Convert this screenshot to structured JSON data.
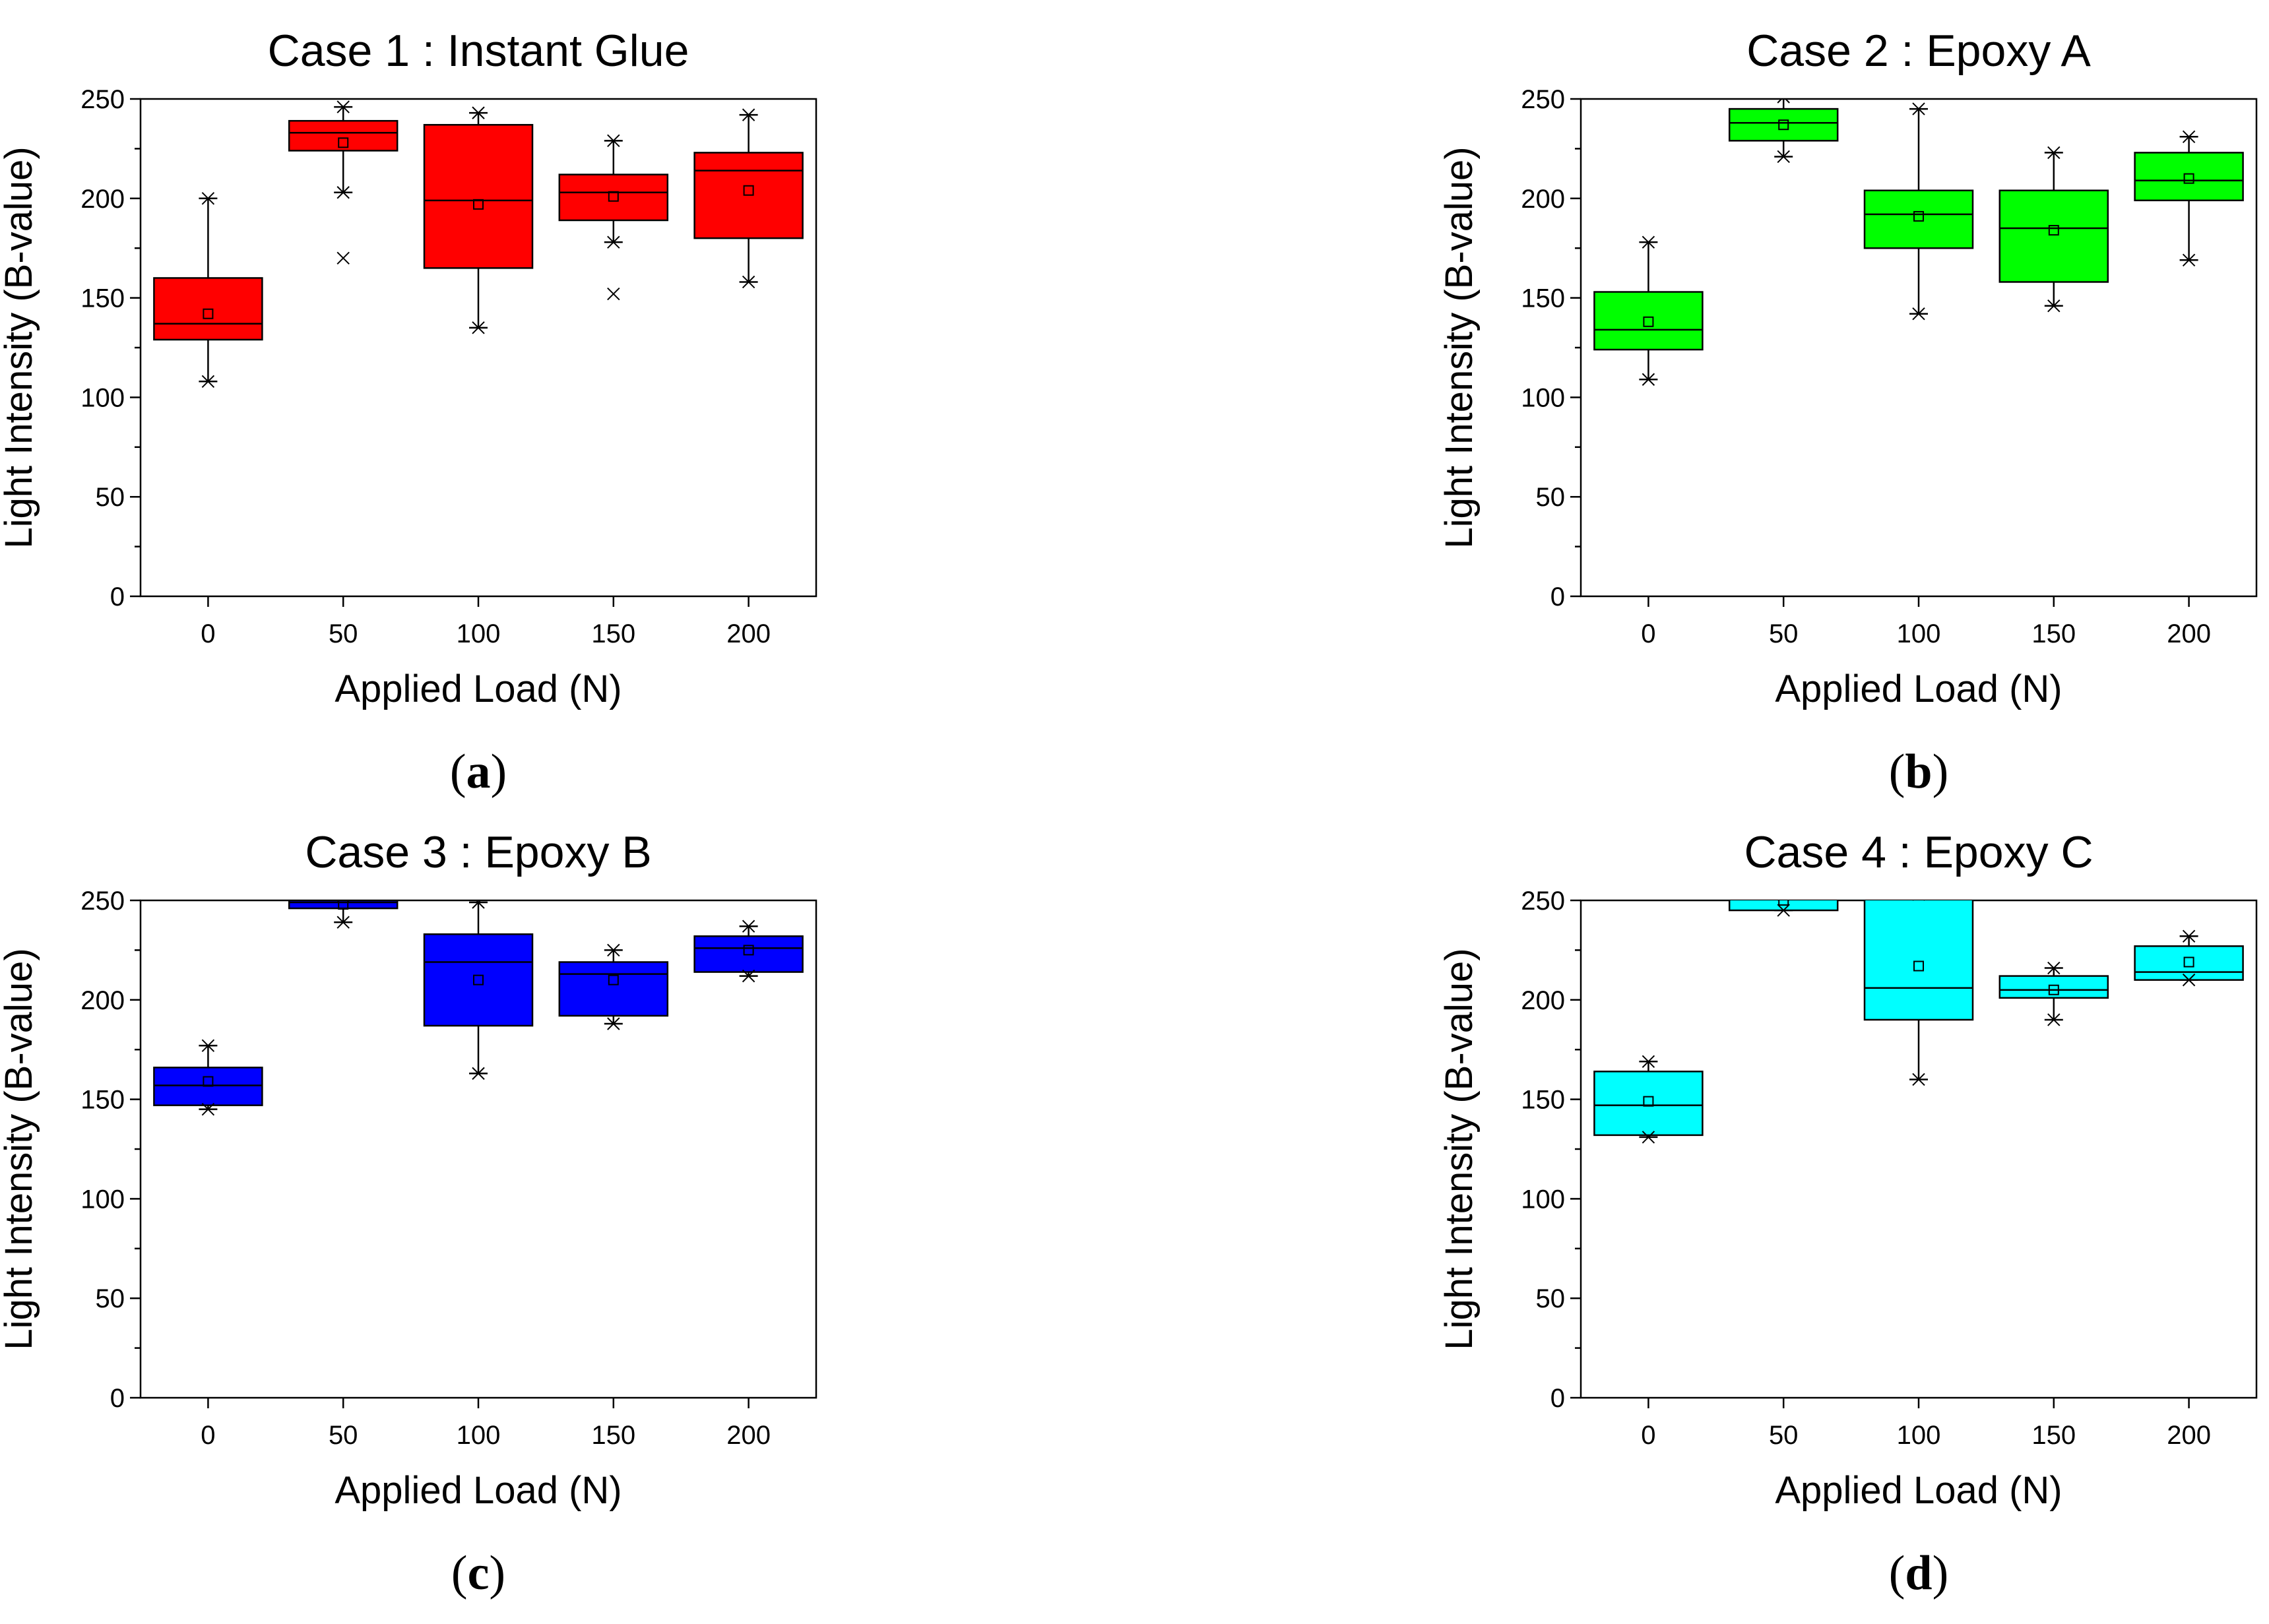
{
  "chart_data": [
    {
      "type": "box",
      "title": "Case 1 : Instant Glue",
      "caption_letter": "a",
      "xlabel": "Applied Load (N)",
      "ylabel": "Light Intensity (B-value)",
      "ylim": [
        0,
        250
      ],
      "yticks": [
        "0",
        "50",
        "100",
        "150",
        "200",
        "250"
      ],
      "categories": [
        "0",
        "50",
        "100",
        "150",
        "200"
      ],
      "color": "#ff0000",
      "boxes": [
        {
          "x": 0,
          "min": 108,
          "q1": 129,
          "median": 137,
          "q3": 160,
          "max": 200,
          "mean": 142,
          "outliers": []
        },
        {
          "x": 50,
          "min": 203,
          "q1": 224,
          "median": 233,
          "q3": 239,
          "max": 246,
          "mean": 228,
          "outliers": [
            170
          ]
        },
        {
          "x": 100,
          "min": 135,
          "q1": 165,
          "median": 199,
          "q3": 237,
          "max": 243,
          "mean": 197,
          "outliers": []
        },
        {
          "x": 150,
          "min": 178,
          "q1": 189,
          "median": 203,
          "q3": 212,
          "max": 229,
          "mean": 201,
          "outliers": [
            152
          ]
        },
        {
          "x": 200,
          "min": 158,
          "q1": 180,
          "median": 214,
          "q3": 223,
          "max": 242,
          "mean": 204,
          "outliers": []
        }
      ]
    },
    {
      "type": "box",
      "title": "Case 2 : Epoxy A",
      "caption_letter": "b",
      "xlabel": "Applied Load (N)",
      "ylabel": "Light Intensity (B-value)",
      "ylim": [
        0,
        250
      ],
      "yticks": [
        "0",
        "50",
        "100",
        "150",
        "200",
        "250"
      ],
      "categories": [
        "0",
        "50",
        "100",
        "150",
        "200"
      ],
      "color": "#00ff00",
      "boxes": [
        {
          "x": 0,
          "min": 109,
          "q1": 124,
          "median": 134,
          "q3": 153,
          "max": 178,
          "mean": 138,
          "outliers": []
        },
        {
          "x": 50,
          "min": 221,
          "q1": 229,
          "median": 238,
          "q3": 245,
          "max": 251,
          "mean": 237,
          "outliers": []
        },
        {
          "x": 100,
          "min": 142,
          "q1": 175,
          "median": 192,
          "q3": 204,
          "max": 245,
          "mean": 191,
          "outliers": []
        },
        {
          "x": 150,
          "min": 146,
          "q1": 158,
          "median": 185,
          "q3": 204,
          "max": 223,
          "mean": 184,
          "outliers": []
        },
        {
          "x": 200,
          "min": 169,
          "q1": 199,
          "median": 209,
          "q3": 223,
          "max": 231,
          "mean": 210,
          "outliers": []
        }
      ]
    },
    {
      "type": "box",
      "title": "Case 3 : Epoxy B",
      "caption_letter": "c",
      "xlabel": "Applied Load (N)",
      "ylabel": "Light Intensity (B-value)",
      "ylim": [
        0,
        250
      ],
      "yticks": [
        "0",
        "50",
        "100",
        "150",
        "200",
        "250"
      ],
      "categories": [
        "0",
        "50",
        "100",
        "150",
        "200"
      ],
      "color": "#0000ff",
      "boxes": [
        {
          "x": 0,
          "min": 145,
          "q1": 147,
          "median": 157,
          "q3": 166,
          "max": 177,
          "mean": 159,
          "outliers": []
        },
        {
          "x": 50,
          "min": 239,
          "q1": 246,
          "median": 249,
          "q3": 250,
          "max": 252,
          "mean": 248,
          "outliers": []
        },
        {
          "x": 100,
          "min": 163,
          "q1": 187,
          "median": 219,
          "q3": 233,
          "max": 249,
          "mean": 210,
          "outliers": []
        },
        {
          "x": 150,
          "min": 188,
          "q1": 192,
          "median": 213,
          "q3": 219,
          "max": 225,
          "mean": 210,
          "outliers": []
        },
        {
          "x": 200,
          "min": 212,
          "q1": 214,
          "median": 226,
          "q3": 232,
          "max": 237,
          "mean": 225,
          "outliers": []
        }
      ]
    },
    {
      "type": "box",
      "title": "Case 4 : Epoxy C",
      "caption_letter": "d",
      "xlabel": "Applied Load (N)",
      "ylabel": "Light Intensity (B-value)",
      "ylim": [
        0,
        250
      ],
      "yticks": [
        "0",
        "50",
        "100",
        "150",
        "200",
        "250"
      ],
      "categories": [
        "0",
        "50",
        "100",
        "150",
        "200"
      ],
      "color": "#00ffff",
      "boxes": [
        {
          "x": 0,
          "min": 131,
          "q1": 132,
          "median": 147,
          "q3": 164,
          "max": 169,
          "mean": 149,
          "outliers": []
        },
        {
          "x": 50,
          "min": 245,
          "q1": 245,
          "median": 252,
          "q3": 253,
          "max": 253,
          "mean": 250,
          "outliers": []
        },
        {
          "x": 100,
          "min": 160,
          "q1": 190,
          "median": 206,
          "q3": 253,
          "max": 253,
          "mean": 217,
          "outliers": []
        },
        {
          "x": 150,
          "min": 190,
          "q1": 201,
          "median": 205,
          "q3": 212,
          "max": 216,
          "mean": 205,
          "outliers": []
        },
        {
          "x": 200,
          "min": 210,
          "q1": 210,
          "median": 214,
          "q3": 227,
          "max": 232,
          "mean": 219,
          "outliers": []
        }
      ]
    }
  ]
}
